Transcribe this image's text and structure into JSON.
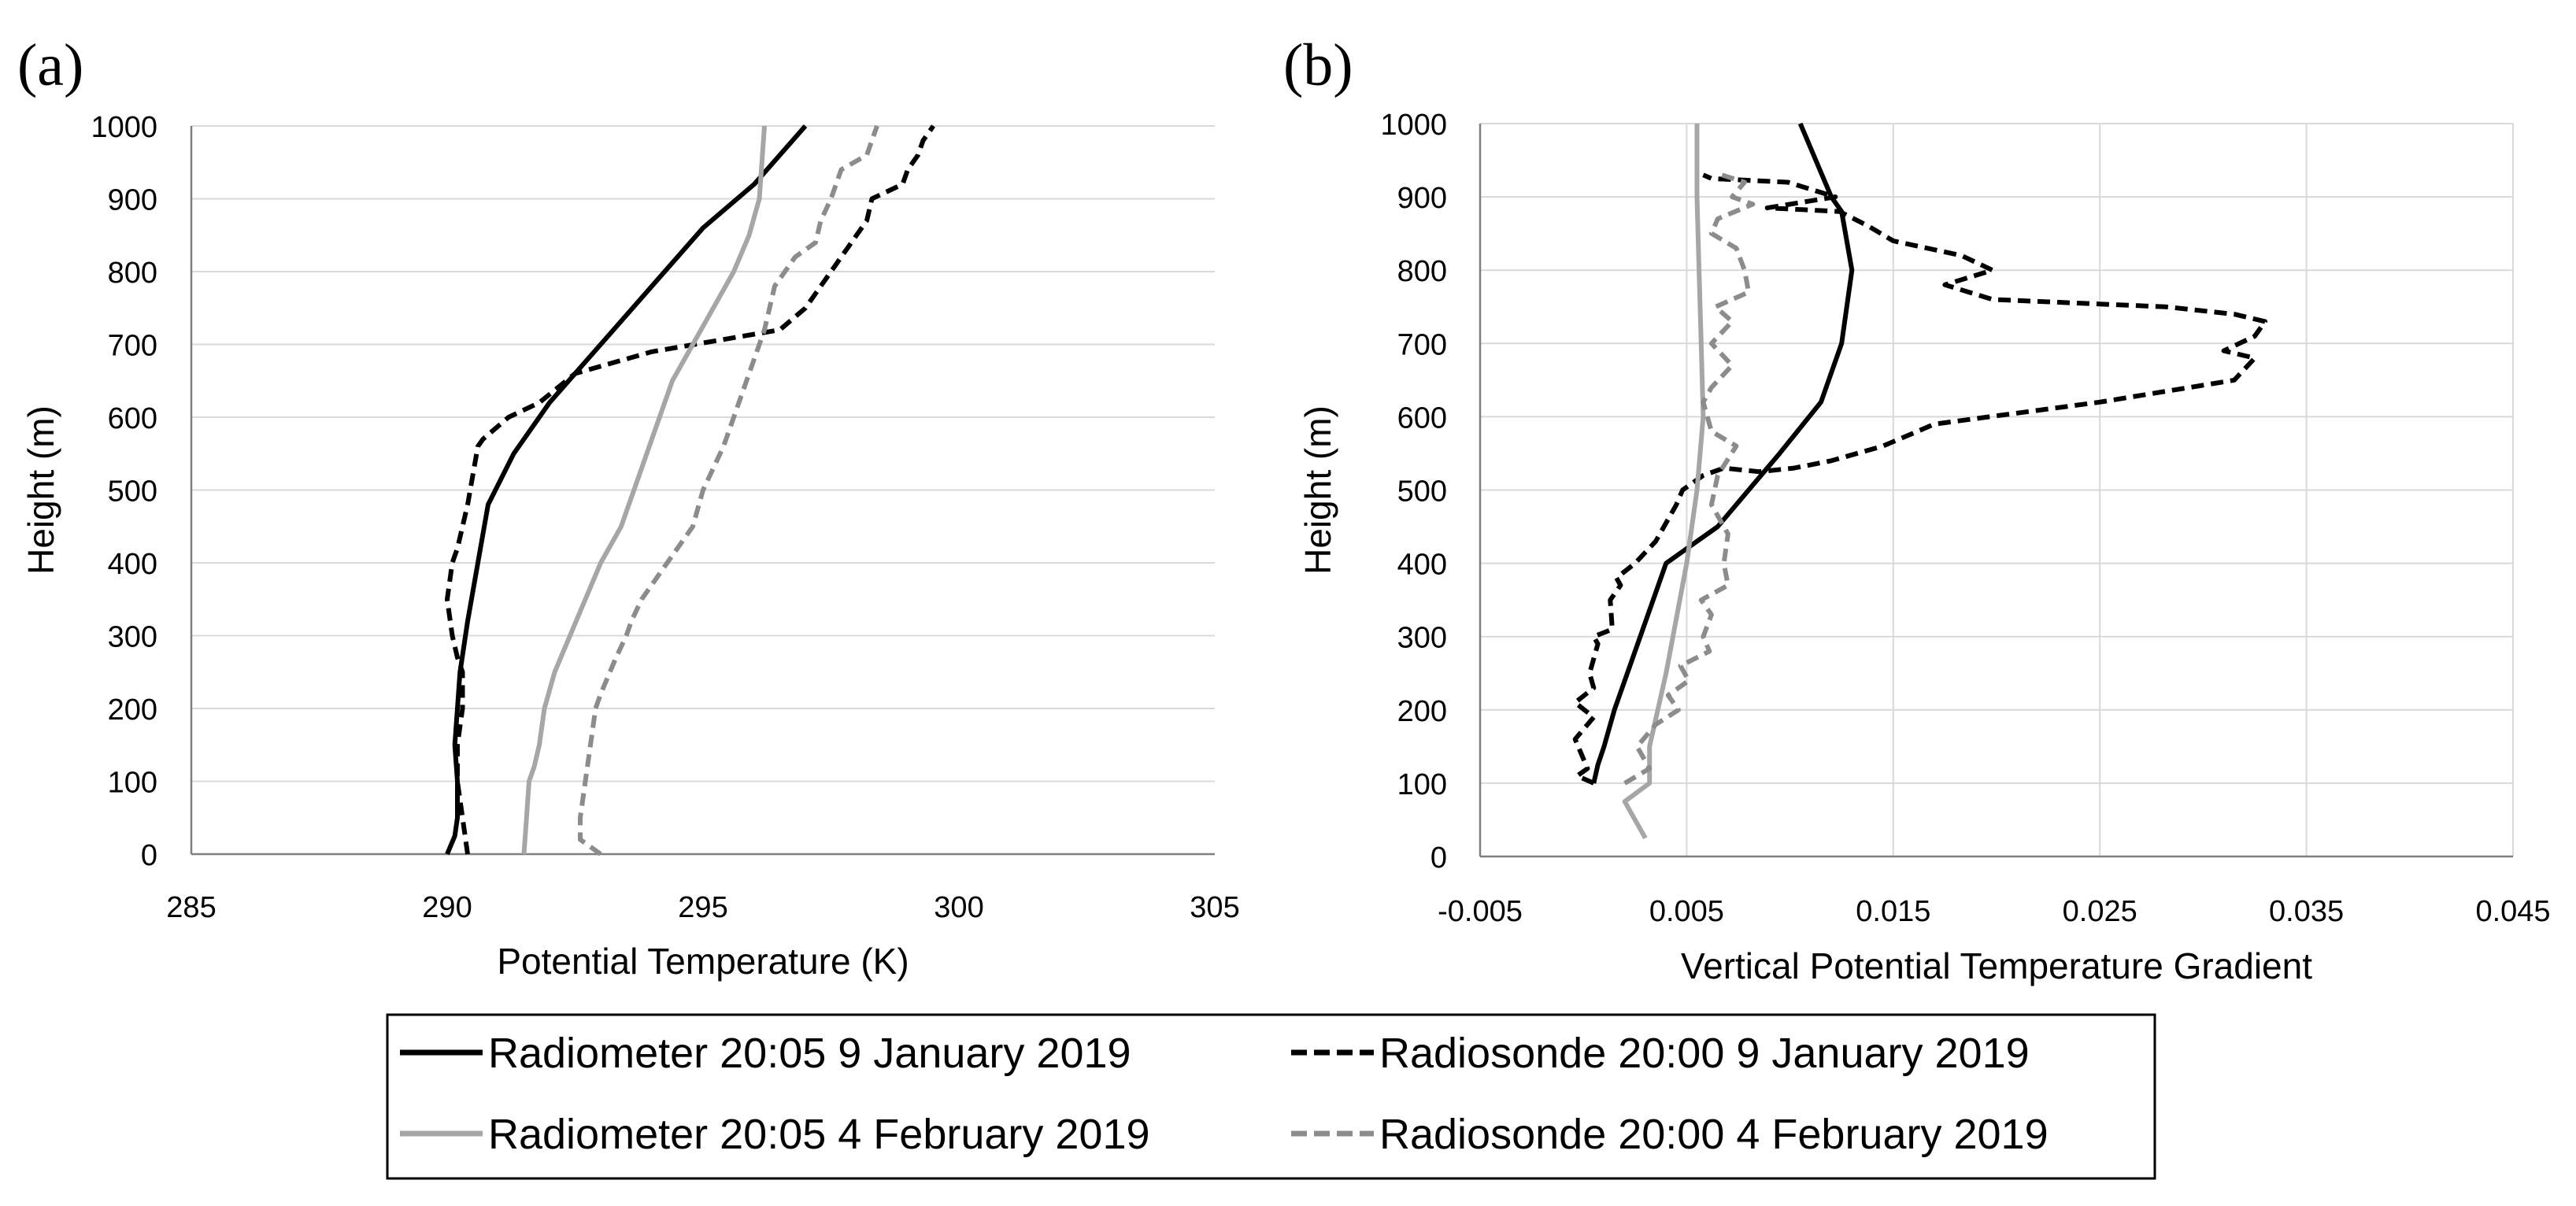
{
  "colors": {
    "black": "#000000",
    "gray": "#a6a6a6",
    "dashed_gray": "#8c8c8c",
    "grid": "#d9d9d9",
    "axis": "#7f7f7f"
  },
  "legend": [
    {
      "label": "Radiometer 20:05 9 January 2019",
      "color": "#000000",
      "dashed": false
    },
    {
      "label": "Radiosonde 20:00 9 January 2019",
      "color": "#000000",
      "dashed": true
    },
    {
      "label": "Radiometer 20:05 4 February 2019",
      "color": "#a6a6a6",
      "dashed": false
    },
    {
      "label": "Radiosonde 20:00 4 February 2019",
      "color": "#8c8c8c",
      "dashed": true
    }
  ],
  "chart_data": [
    {
      "panel": "(a)",
      "type": "line",
      "xlabel": "Potential Temperature (K)",
      "ylabel": "Height (m)",
      "xlim": [
        285,
        305
      ],
      "ylim": [
        0,
        1000
      ],
      "xticks": [
        "285",
        "290",
        "295",
        "300",
        "305"
      ],
      "yticks": [
        "0",
        "100",
        "200",
        "300",
        "400",
        "500",
        "600",
        "700",
        "800",
        "900",
        "1000"
      ],
      "grid": "horizontal",
      "series": [
        {
          "name": "Radiometer 20:05 9 January 2019",
          "dashed": false,
          "color": "#000000",
          "x": [
            290.0,
            290.15,
            290.2,
            290.2,
            290.15,
            290.2,
            290.25,
            290.4,
            290.6,
            290.8,
            291.3,
            292.0,
            293.0,
            294.0,
            295.0,
            296.0,
            296.5,
            297.0
          ],
          "y": [
            0,
            25,
            50,
            100,
            150,
            200,
            250,
            320,
            400,
            480,
            550,
            620,
            700,
            780,
            860,
            920,
            960,
            1000
          ]
        },
        {
          "name": "Radiosonde 20:00 9 January 2019",
          "dashed": true,
          "color": "#000000",
          "x": [
            290.4,
            290.3,
            290.2,
            290.2,
            290.3,
            290.3,
            290.2,
            290.1,
            290.0,
            290.1,
            290.2,
            290.3,
            290.4,
            290.5,
            290.6,
            290.7,
            291.2,
            291.8,
            292.5,
            294.0,
            296.5,
            297.0,
            297.3,
            297.6,
            297.9,
            298.1,
            298.2,
            298.3,
            298.9,
            299.0,
            299.2,
            299.3,
            299.5
          ],
          "y": [
            0,
            50,
            100,
            150,
            200,
            250,
            270,
            300,
            350,
            400,
            420,
            450,
            480,
            520,
            560,
            570,
            600,
            620,
            660,
            690,
            720,
            750,
            780,
            810,
            840,
            860,
            870,
            900,
            920,
            940,
            960,
            980,
            1000
          ]
        },
        {
          "name": "Radiometer 20:05 4 February 2019",
          "dashed": false,
          "color": "#a6a6a6",
          "x": [
            291.5,
            291.55,
            291.6,
            291.7,
            291.8,
            291.9,
            292.1,
            292.4,
            292.7,
            293.0,
            293.4,
            293.9,
            294.4,
            294.8,
            295.2,
            295.6,
            295.9,
            296.1,
            296.2
          ],
          "y": [
            0,
            50,
            100,
            120,
            150,
            200,
            250,
            300,
            350,
            400,
            450,
            550,
            650,
            700,
            750,
            800,
            850,
            900,
            1000
          ]
        },
        {
          "name": "Radiosonde 20:00 4 February 2019",
          "dashed": true,
          "color": "#8c8c8c",
          "x": [
            293.0,
            292.6,
            292.6,
            292.7,
            292.8,
            292.9,
            293.0,
            293.3,
            293.5,
            293.6,
            293.8,
            294.1,
            294.3,
            294.5,
            294.8,
            295.0,
            295.2,
            295.4,
            295.6,
            295.8,
            296.0,
            296.2,
            296.3,
            296.4,
            296.6,
            296.8,
            297.2,
            297.3,
            297.5,
            297.6,
            297.7,
            298.2,
            298.3,
            298.4
          ],
          "y": [
            0,
            20,
            50,
            100,
            150,
            200,
            220,
            270,
            300,
            320,
            350,
            380,
            400,
            420,
            450,
            500,
            530,
            560,
            600,
            640,
            680,
            720,
            750,
            780,
            800,
            820,
            840,
            870,
            900,
            920,
            940,
            960,
            980,
            1000
          ]
        }
      ]
    },
    {
      "panel": "(b)",
      "type": "line",
      "xlabel": "Vertical Potential Temperature Gradient",
      "ylabel": "Height (m)",
      "xlim": [
        -0.005,
        0.045
      ],
      "ylim": [
        0,
        1000
      ],
      "xticks": [
        "-0.005",
        "0.005",
        "0.015",
        "0.025",
        "0.035",
        "0.045"
      ],
      "yticks": [
        "0",
        "100",
        "200",
        "300",
        "400",
        "500",
        "600",
        "700",
        "800",
        "900",
        "1000"
      ],
      "grid": "both",
      "series": [
        {
          "name": "Radiometer 20:05 9 January 2019",
          "dashed": false,
          "color": "#000000",
          "x": [
            0.0005,
            0.0007,
            0.001,
            0.0015,
            0.004,
            0.0065,
            0.0095,
            0.0115,
            0.0125,
            0.013,
            0.0125,
            0.012,
            0.0105
          ],
          "y": [
            100,
            125,
            150,
            200,
            400,
            450,
            550,
            620,
            700,
            800,
            880,
            900,
            1000
          ]
        },
        {
          "name": "Radiosonde 20:00 9 January 2019",
          "dashed": true,
          "color": "#000000",
          "x": [
            0.0005,
            -0.0003,
            0.0002,
            -0.0004,
            0.0005,
            -0.0004,
            0.0005,
            0.0003,
            0.0007,
            0.0005,
            0.0014,
            0.0013,
            0.0018,
            0.0016,
            0.0025,
            0.0035,
            0.0045,
            0.0048,
            0.0058,
            0.0068,
            0.0085,
            0.0102,
            0.012,
            0.0145,
            0.017,
            0.025,
            0.0315,
            0.0325,
            0.031,
            0.0325,
            0.033,
            0.0315,
            0.0282,
            0.0198,
            0.0175,
            0.0198,
            0.0183,
            0.015,
            0.0138,
            0.0124,
            0.0089,
            0.0122,
            0.0099,
            0.0062,
            0.0058
          ],
          "y": [
            100,
            110,
            120,
            160,
            190,
            210,
            230,
            250,
            290,
            300,
            310,
            350,
            370,
            380,
            400,
            430,
            480,
            500,
            520,
            530,
            525,
            530,
            540,
            560,
            590,
            620,
            650,
            680,
            690,
            710,
            730,
            740,
            750,
            760,
            780,
            800,
            820,
            840,
            860,
            880,
            885,
            900,
            920,
            925,
            930
          ]
        },
        {
          "name": "Radiometer 20:05 4 February 2019",
          "dashed": false,
          "color": "#a6a6a6",
          "x": [
            0.003,
            0.002,
            0.0032,
            0.0032,
            0.004,
            0.005,
            0.0055,
            0.0058,
            0.0057,
            0.0056,
            0.0055,
            0.0055
          ],
          "y": [
            25,
            75,
            100,
            150,
            250,
            400,
            500,
            600,
            700,
            800,
            900,
            1000
          ]
        },
        {
          "name": "Radiosonde 20:00 4 February 2019",
          "dashed": true,
          "color": "#8c8c8c",
          "x": [
            0.002,
            0.0032,
            0.0026,
            0.0035,
            0.0046,
            0.0041,
            0.0051,
            0.0047,
            0.0061,
            0.0058,
            0.0062,
            0.0057,
            0.007,
            0.0068,
            0.007,
            0.0062,
            0.0065,
            0.0074,
            0.0062,
            0.0058,
            0.0062,
            0.0072,
            0.0062,
            0.0072,
            0.0064,
            0.008,
            0.0078,
            0.0074,
            0.0062,
            0.0065,
            0.0082,
            0.0072,
            0.0078,
            0.0067
          ],
          "y": [
            100,
            120,
            150,
            180,
            200,
            220,
            240,
            260,
            280,
            300,
            330,
            350,
            370,
            400,
            440,
            480,
            520,
            560,
            580,
            620,
            640,
            670,
            700,
            730,
            750,
            770,
            800,
            830,
            850,
            870,
            890,
            900,
            920,
            930
          ]
        }
      ]
    }
  ]
}
